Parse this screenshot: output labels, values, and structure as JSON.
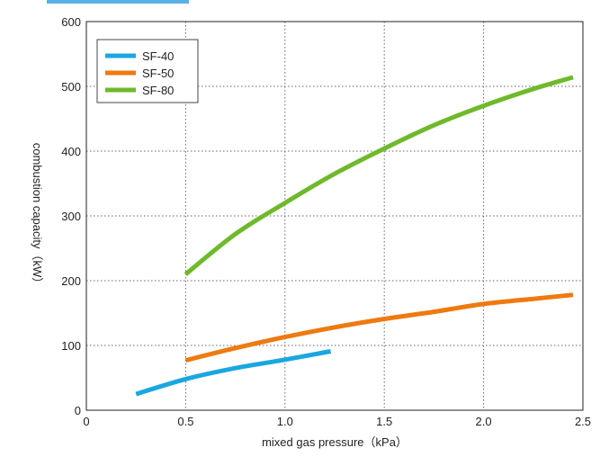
{
  "chart_data": {
    "type": "line",
    "title": "",
    "xlabel": "mixed gas pressure（kPa）",
    "ylabel": "combustion capacity（kW）",
    "xlim": [
      0,
      2.5
    ],
    "ylim": [
      0,
      600
    ],
    "x_ticks": [
      "0",
      "0.5",
      "1.0",
      "1.5",
      "2.0",
      "2.5"
    ],
    "y_ticks": [
      "0",
      "100",
      "200",
      "300",
      "400",
      "500",
      "600"
    ],
    "grid": true,
    "legend_position": "top-left",
    "series": [
      {
        "name": "SF-40",
        "color": "#1aa7e0",
        "points": [
          [
            0.25,
            25
          ],
          [
            0.5,
            48
          ],
          [
            0.75,
            65
          ],
          [
            1.0,
            78
          ],
          [
            1.23,
            91
          ]
        ]
      },
      {
        "name": "SF-50",
        "color": "#ee7a10",
        "points": [
          [
            0.5,
            77
          ],
          [
            0.75,
            96
          ],
          [
            1.0,
            113
          ],
          [
            1.25,
            128
          ],
          [
            1.5,
            141
          ],
          [
            1.75,
            152
          ],
          [
            2.0,
            164
          ],
          [
            2.25,
            172
          ],
          [
            2.45,
            178
          ]
        ]
      },
      {
        "name": "SF-80",
        "color": "#6fb92c",
        "points": [
          [
            0.5,
            210
          ],
          [
            0.75,
            272
          ],
          [
            1.0,
            320
          ],
          [
            1.25,
            365
          ],
          [
            1.5,
            404
          ],
          [
            1.75,
            440
          ],
          [
            2.0,
            470
          ],
          [
            2.25,
            496
          ],
          [
            2.45,
            514
          ]
        ]
      }
    ]
  }
}
